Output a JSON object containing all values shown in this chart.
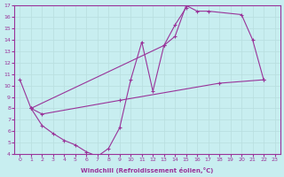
{
  "xlabel": "Windchill (Refroidissement éolien,°C)",
  "background_color": "#c8eef0",
  "line_color": "#993399",
  "grid_color": "#b8dede",
  "xlim": [
    -0.5,
    23.5
  ],
  "ylim": [
    4,
    17
  ],
  "xticks": [
    0,
    1,
    2,
    3,
    4,
    5,
    6,
    7,
    8,
    9,
    10,
    11,
    12,
    13,
    14,
    15,
    16,
    17,
    18,
    19,
    20,
    21,
    22,
    23
  ],
  "yticks": [
    4,
    5,
    6,
    7,
    8,
    9,
    10,
    11,
    12,
    13,
    14,
    15,
    16,
    17
  ],
  "curve1": {
    "x": [
      0,
      1,
      2,
      3,
      4,
      5,
      6,
      7,
      8,
      9,
      10,
      11,
      12,
      13,
      14,
      15
    ],
    "y": [
      10.5,
      8.0,
      6.5,
      5.8,
      5.2,
      4.8,
      4.2,
      3.8,
      4.5,
      6.3,
      10.5,
      13.8,
      9.5,
      13.5,
      15.3,
      16.8
    ]
  },
  "curve2": {
    "x": [
      1,
      13,
      14,
      15,
      16,
      17,
      20,
      21,
      22
    ],
    "y": [
      8.0,
      13.5,
      14.3,
      17.0,
      16.5,
      16.5,
      16.2,
      14.0,
      10.5
    ]
  },
  "curve3": {
    "x": [
      1,
      2,
      9,
      18,
      22
    ],
    "y": [
      8.0,
      7.5,
      8.7,
      10.2,
      10.5
    ]
  }
}
